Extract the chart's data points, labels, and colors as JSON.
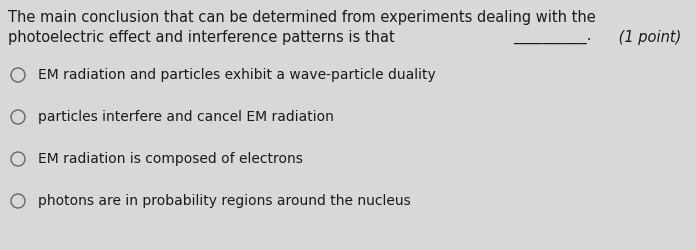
{
  "background_color": "#d8d8d8",
  "question_line1": "The main conclusion that can be determined from experiments dealing with the",
  "question_line2_plain": "photoelectric effect and interference patterns is that ",
  "question_line2_blank": "__________.",
  "question_line2_points": " (1 point)",
  "options": [
    "EM radiation and particles exhibit a wave-particle duality",
    "particles interfere and cancel EM radiation",
    "EM radiation is composed of electrons",
    "photons are in probability regions around the nucleus"
  ],
  "text_color": "#1a1a1a",
  "font_size_question": 10.5,
  "font_size_options": 10.0,
  "circle_color": "#666666",
  "circle_linewidth": 1.0
}
